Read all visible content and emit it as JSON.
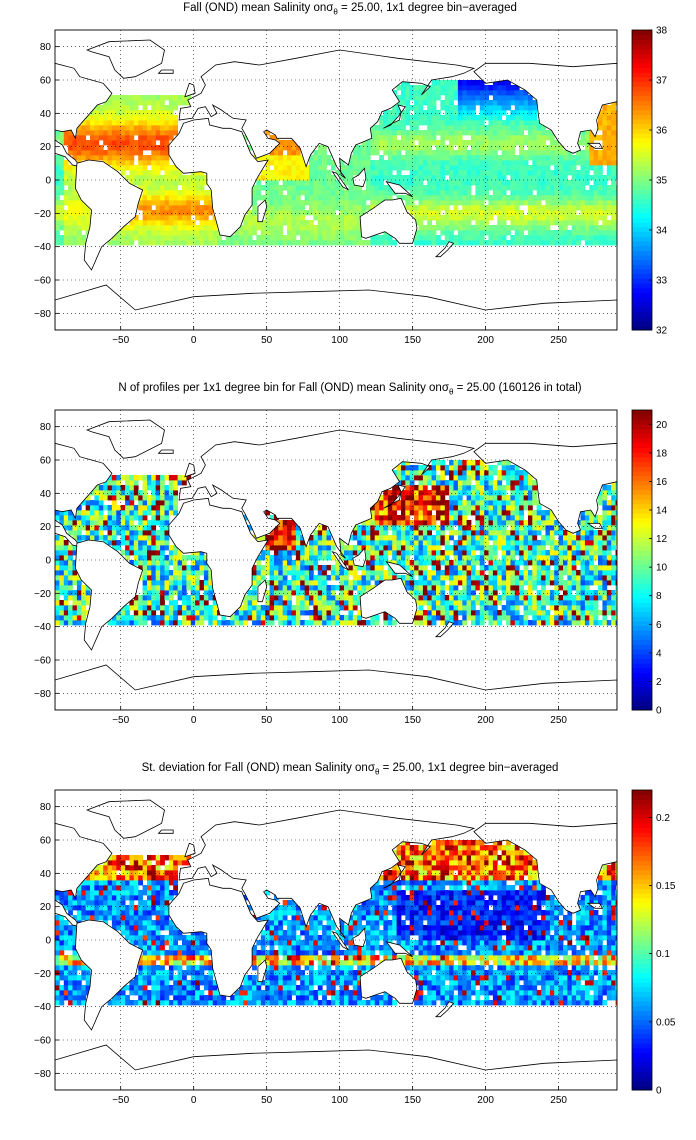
{
  "panels": [
    {
      "title_pre": "Fall (OND) mean Salinity on",
      "sigma_symbol": "σ",
      "sigma_sub": "θ",
      "title_post": " = 25.00, 1x1 degree bin−averaged",
      "colorbar": {
        "min": 32,
        "max": 38,
        "ticks": [
          "32",
          "33",
          "34",
          "35",
          "36",
          "37",
          "38"
        ]
      },
      "field": "salinity"
    },
    {
      "title_pre": "N of profiles per 1x1 degree bin for Fall (OND) mean Salinity on",
      "sigma_symbol": "σ",
      "sigma_sub": "θ",
      "title_post": " = 25.00 (160126 in total)",
      "colorbar": {
        "min": 0,
        "max": 21,
        "ticks": [
          "0",
          "2",
          "4",
          "6",
          "8",
          "10",
          "12",
          "14",
          "16",
          "18",
          "20"
        ]
      },
      "field": "count"
    },
    {
      "title_pre": "St. deviation for Fall (OND) mean Salinity on",
      "sigma_symbol": "σ",
      "sigma_sub": "θ",
      "title_post": " = 25.00, 1x1 degree bin−averaged",
      "colorbar": {
        "min": 0,
        "max": 0.22,
        "ticks": [
          "0",
          "0.05",
          "0.1",
          "0.15",
          "0.2"
        ]
      },
      "field": "stdev"
    }
  ],
  "map_axes": {
    "x_range": [
      -95,
      290
    ],
    "y_range": [
      -90,
      90
    ],
    "x_ticks": [
      "-50",
      "0",
      "50",
      "100",
      "150",
      "200",
      "250"
    ],
    "y_ticks": [
      "80",
      "60",
      "40",
      "20",
      "0",
      "-20",
      "-40",
      "-60",
      "-80"
    ],
    "grid": "dotted"
  },
  "colormap": "jet"
}
